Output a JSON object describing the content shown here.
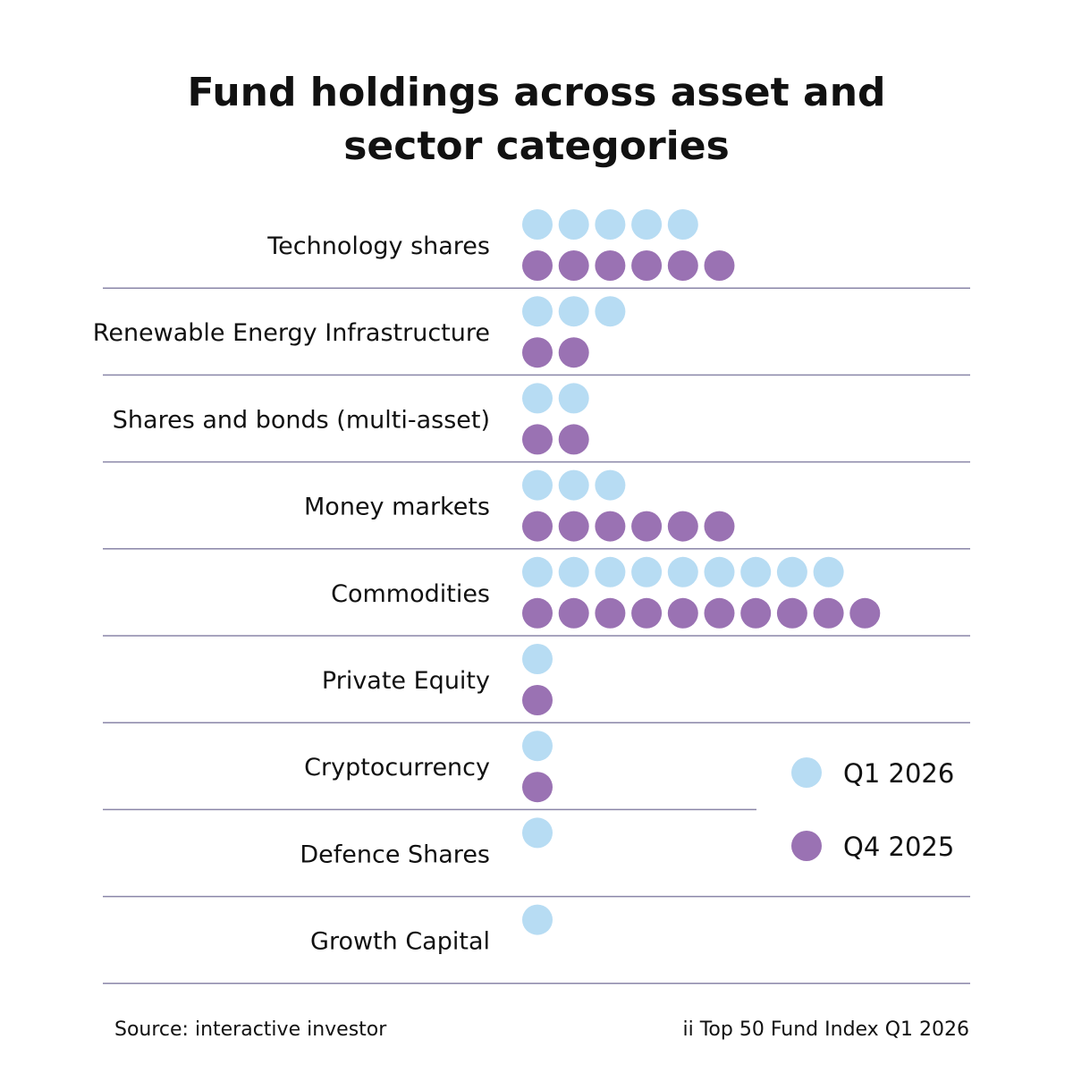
{
  "title_lines": [
    "Fund holdings across asset and",
    "sector categories"
  ],
  "chart_data": {
    "type": "dot",
    "title": "Fund holdings across asset and sector categories",
    "categories": [
      "Technology shares",
      "Renewable Energy Infrastructure",
      "Shares and bonds (multi-asset)",
      "Money markets",
      "Commodities",
      "Private Equity",
      "Cryptocurrency",
      "Defence Shares",
      "Growth Capital"
    ],
    "series": [
      {
        "name": "Q1 2026",
        "color": "#b7dcf3",
        "values": [
          5,
          3,
          2,
          3,
          9,
          1,
          1,
          1,
          1
        ]
      },
      {
        "name": "Q4 2025",
        "color": "#9a72b3",
        "values": [
          6,
          2,
          2,
          6,
          10,
          1,
          1,
          0,
          0
        ]
      }
    ],
    "divider_color": "#8a86a8",
    "legend_position": "right"
  },
  "footer": {
    "source": "Source: interactive investor",
    "index": "ii Top 50 Fund Index Q1 2026"
  }
}
